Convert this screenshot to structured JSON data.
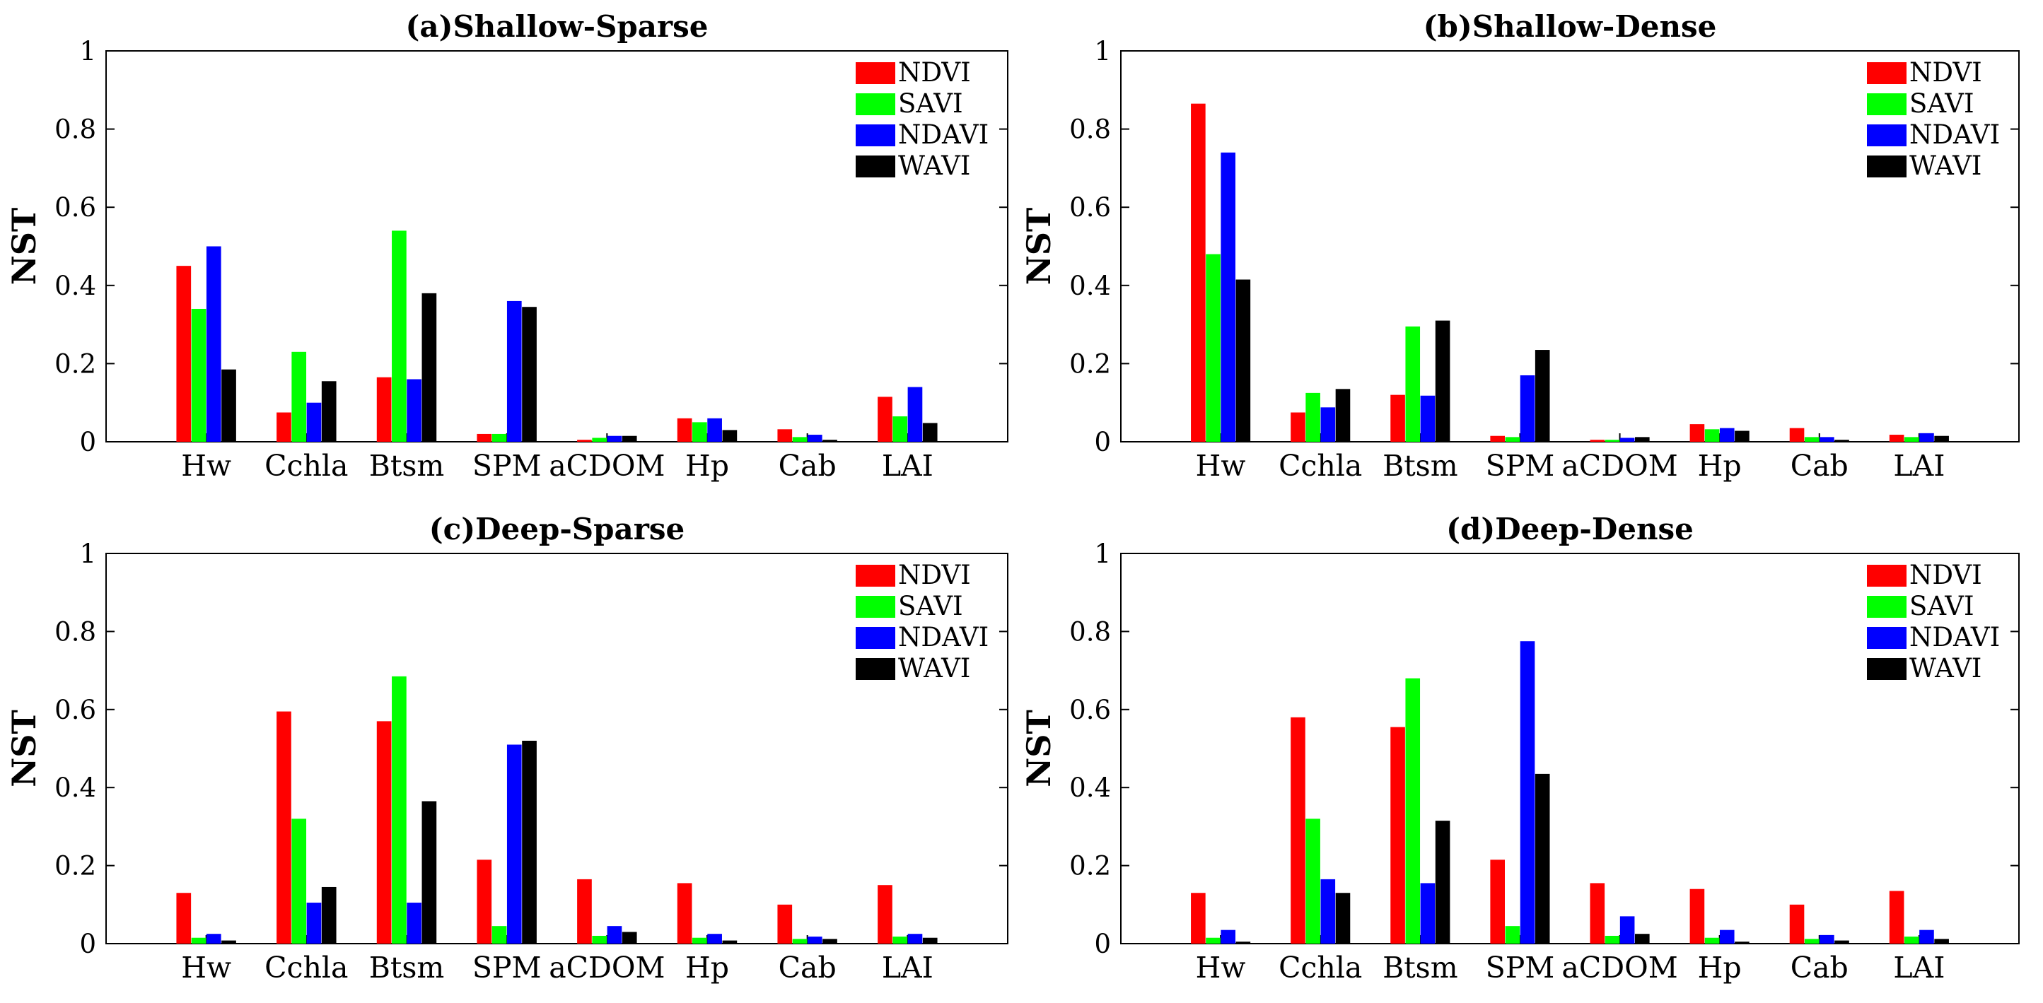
{
  "colors": {
    "NDVI": "#ff0000",
    "SAVI": "#00ff00",
    "NDAVI": "#0000ff",
    "WAVI": "#000000",
    "background": "#ffffff",
    "axis": "#000000"
  },
  "chart_data": [
    {
      "type": "bar",
      "title": "(a)Shallow-Sparse",
      "ylabel": "NST",
      "xlabel": "",
      "ylim": [
        0,
        1
      ],
      "yticks": [
        "0",
        "0.2",
        "0.4",
        "0.6",
        "0.8",
        "1"
      ],
      "categories": [
        "Hw",
        "Cchla",
        "Btsm",
        "SPM",
        "aCDOM",
        "Hp",
        "Cab",
        "LAI"
      ],
      "legend_position": "top-right",
      "series": [
        {
          "name": "NDVI",
          "values": [
            0.45,
            0.075,
            0.165,
            0.02,
            0.005,
            0.06,
            0.032,
            0.115
          ]
        },
        {
          "name": "SAVI",
          "values": [
            0.34,
            0.23,
            0.54,
            0.02,
            0.01,
            0.05,
            0.012,
            0.065
          ]
        },
        {
          "name": "NDAVI",
          "values": [
            0.5,
            0.1,
            0.16,
            0.36,
            0.015,
            0.06,
            0.018,
            0.14
          ]
        },
        {
          "name": "WAVI",
          "values": [
            0.185,
            0.155,
            0.38,
            0.345,
            0.015,
            0.03,
            0.005,
            0.048
          ]
        }
      ]
    },
    {
      "type": "bar",
      "title": "(b)Shallow-Dense",
      "ylabel": "NST",
      "xlabel": "",
      "ylim": [
        0,
        1
      ],
      "yticks": [
        "0",
        "0.2",
        "0.4",
        "0.6",
        "0.8",
        "1"
      ],
      "categories": [
        "Hw",
        "Cchla",
        "Btsm",
        "SPM",
        "aCDOM",
        "Hp",
        "Cab",
        "LAI"
      ],
      "legend_position": "top-right",
      "series": [
        {
          "name": "NDVI",
          "values": [
            0.865,
            0.075,
            0.12,
            0.015,
            0.005,
            0.045,
            0.035,
            0.018
          ]
        },
        {
          "name": "SAVI",
          "values": [
            0.48,
            0.125,
            0.295,
            0.012,
            0.005,
            0.032,
            0.012,
            0.012
          ]
        },
        {
          "name": "NDAVI",
          "values": [
            0.74,
            0.088,
            0.118,
            0.17,
            0.01,
            0.035,
            0.012,
            0.022
          ]
        },
        {
          "name": "WAVI",
          "values": [
            0.415,
            0.135,
            0.31,
            0.235,
            0.012,
            0.028,
            0.005,
            0.015
          ]
        }
      ]
    },
    {
      "type": "bar",
      "title": "(c)Deep-Sparse",
      "ylabel": "NST",
      "xlabel": "",
      "ylim": [
        0,
        1
      ],
      "yticks": [
        "0",
        "0.2",
        "0.4",
        "0.6",
        "0.8",
        "1"
      ],
      "categories": [
        "Hw",
        "Cchla",
        "Btsm",
        "SPM",
        "aCDOM",
        "Hp",
        "Cab",
        "LAI"
      ],
      "legend_position": "top-right",
      "series": [
        {
          "name": "NDVI",
          "values": [
            0.13,
            0.595,
            0.57,
            0.215,
            0.165,
            0.155,
            0.1,
            0.15
          ]
        },
        {
          "name": "SAVI",
          "values": [
            0.015,
            0.32,
            0.685,
            0.045,
            0.02,
            0.015,
            0.012,
            0.018
          ]
        },
        {
          "name": "NDAVI",
          "values": [
            0.025,
            0.105,
            0.105,
            0.51,
            0.045,
            0.025,
            0.018,
            0.025
          ]
        },
        {
          "name": "WAVI",
          "values": [
            0.008,
            0.145,
            0.365,
            0.52,
            0.03,
            0.008,
            0.012,
            0.015
          ]
        }
      ]
    },
    {
      "type": "bar",
      "title": "(d)Deep-Dense",
      "ylabel": "NST",
      "xlabel": "",
      "ylim": [
        0,
        1
      ],
      "yticks": [
        "0",
        "0.2",
        "0.4",
        "0.6",
        "0.8",
        "1"
      ],
      "categories": [
        "Hw",
        "Cchla",
        "Btsm",
        "SPM",
        "aCDOM",
        "Hp",
        "Cab",
        "LAI"
      ],
      "legend_position": "top-right",
      "series": [
        {
          "name": "NDVI",
          "values": [
            0.13,
            0.58,
            0.555,
            0.215,
            0.155,
            0.14,
            0.1,
            0.135
          ]
        },
        {
          "name": "SAVI",
          "values": [
            0.015,
            0.32,
            0.68,
            0.045,
            0.02,
            0.015,
            0.012,
            0.018
          ]
        },
        {
          "name": "NDAVI",
          "values": [
            0.035,
            0.165,
            0.155,
            0.775,
            0.07,
            0.035,
            0.022,
            0.035
          ]
        },
        {
          "name": "WAVI",
          "values": [
            0.005,
            0.13,
            0.315,
            0.435,
            0.025,
            0.005,
            0.008,
            0.012
          ]
        }
      ]
    }
  ]
}
